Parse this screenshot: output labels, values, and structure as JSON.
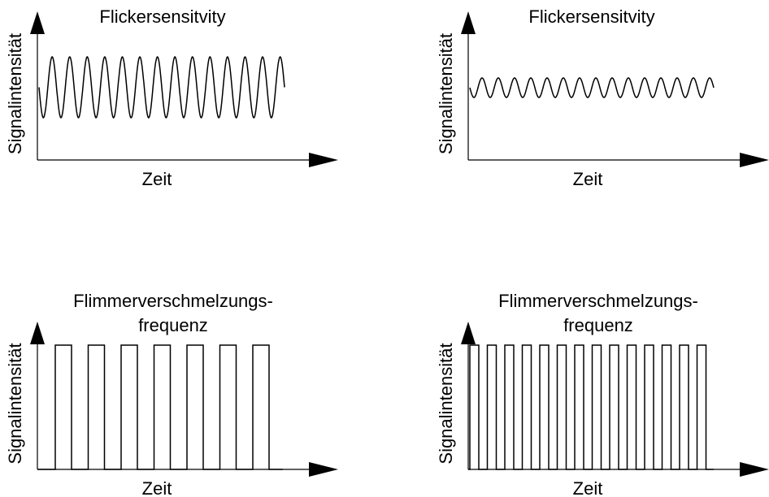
{
  "panels": [
    {
      "title": [
        "Flickersensitvity"
      ],
      "y_label": "Signalintensität",
      "x_label": "Zeit"
    },
    {
      "title": [
        "Flickersensitvity"
      ],
      "y_label": "Signalintensität",
      "x_label": "Zeit"
    },
    {
      "title": [
        "Flimmerverschmelzungs-",
        "frequenz"
      ],
      "y_label": "Signalintensität",
      "x_label": "Zeit"
    },
    {
      "title": [
        "Flimmerverschmelzungs-",
        "frequenz"
      ],
      "y_label": "Signalintensität",
      "x_label": "Zeit"
    }
  ]
}
